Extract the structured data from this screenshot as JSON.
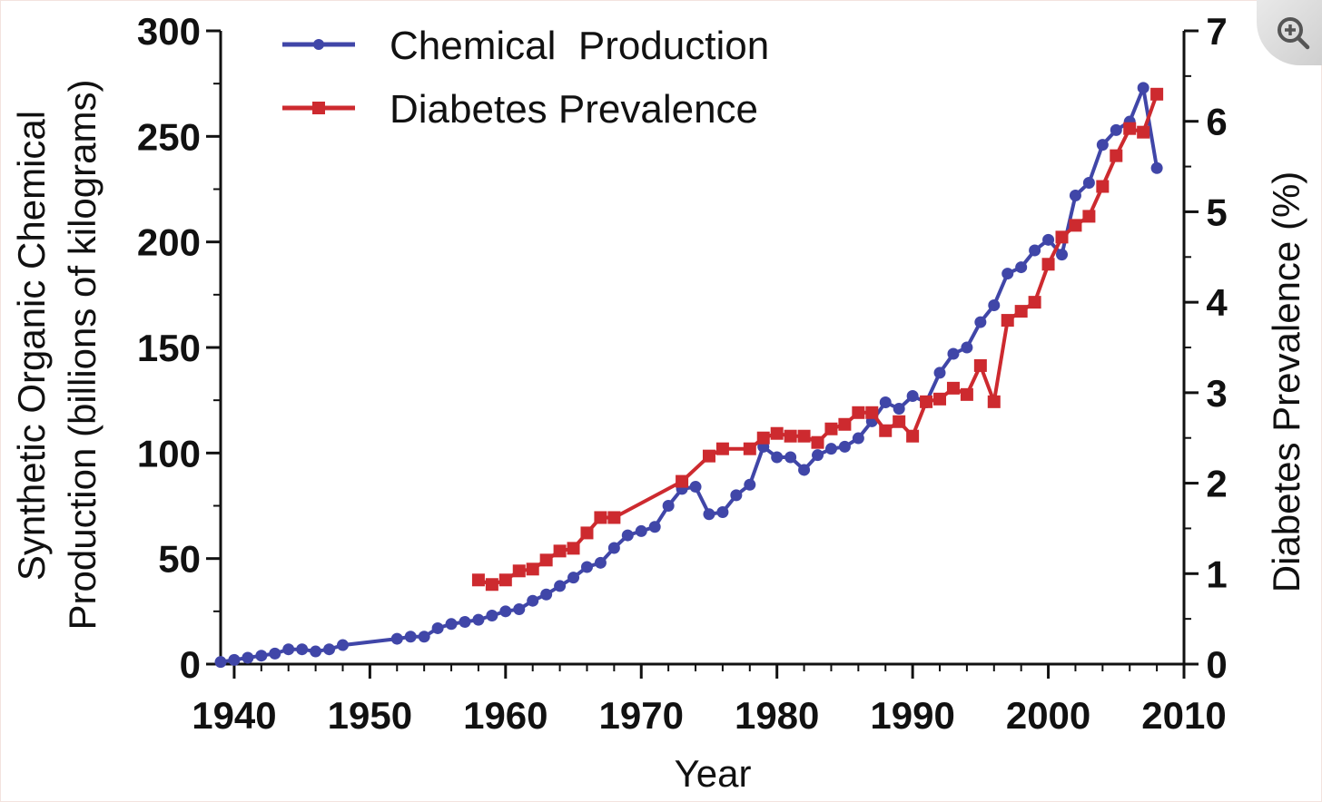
{
  "chart_data": {
    "type": "line",
    "title": "",
    "xlabel": "Year",
    "ylabel_left": "Synthetic Organic Chemical Production (billions of kilograms)",
    "ylabel_left_lines": [
      "Synthetic  Organic  Chemical",
      "Production (billions of kilograms)"
    ],
    "ylabel_right": "Diabetes  Prevalence (%)",
    "xlim": [
      1939,
      2010
    ],
    "ylim_left": [
      0,
      300
    ],
    "ylim_right": [
      0,
      7
    ],
    "x_ticks": [
      1940,
      1950,
      1960,
      1970,
      1980,
      1990,
      2000,
      2010
    ],
    "y_ticks_left": [
      0,
      50,
      100,
      150,
      200,
      250,
      300
    ],
    "y_ticks_right": [
      0,
      1,
      2,
      3,
      4,
      5,
      6,
      7
    ],
    "grid": false,
    "legend_position": "top-left",
    "series": [
      {
        "name": "Chemical  Production",
        "axis": "left",
        "color": "#4046a8",
        "marker": "circle",
        "x": [
          1939,
          1940,
          1941,
          1942,
          1943,
          1944,
          1945,
          1946,
          1947,
          1948,
          1952,
          1953,
          1954,
          1955,
          1956,
          1957,
          1958,
          1959,
          1960,
          1961,
          1962,
          1963,
          1964,
          1965,
          1966,
          1967,
          1968,
          1969,
          1970,
          1971,
          1972,
          1973,
          1974,
          1975,
          1976,
          1977,
          1978,
          1979,
          1980,
          1981,
          1982,
          1983,
          1984,
          1985,
          1986,
          1987,
          1988,
          1989,
          1990,
          1991,
          1992,
          1993,
          1994,
          1995,
          1996,
          1997,
          1998,
          1999,
          2000,
          2001,
          2002,
          2003,
          2004,
          2005,
          2006,
          2007,
          2008
        ],
        "values": [
          1,
          2,
          3,
          4,
          5,
          7,
          7,
          6,
          7,
          9,
          12,
          13,
          13,
          17,
          19,
          20,
          21,
          23,
          25,
          26,
          30,
          33,
          37,
          41,
          46,
          48,
          55,
          61,
          63,
          65,
          75,
          83,
          84,
          71,
          72,
          80,
          85,
          103,
          98,
          98,
          92,
          99,
          102,
          103,
          107,
          115,
          124,
          121,
          127,
          124,
          138,
          147,
          150,
          162,
          170,
          185,
          188,
          196,
          201,
          194,
          222,
          228,
          246,
          253,
          257,
          273,
          235
        ]
      },
      {
        "name": "Diabetes Prevalence",
        "axis": "right",
        "color": "#cd2a2f",
        "marker": "square",
        "x": [
          1958,
          1959,
          1960,
          1961,
          1962,
          1963,
          1964,
          1965,
          1966,
          1967,
          1968,
          1973,
          1975,
          1976,
          1978,
          1979,
          1980,
          1981,
          1982,
          1983,
          1984,
          1985,
          1986,
          1987,
          1988,
          1989,
          1990,
          1991,
          1992,
          1993,
          1994,
          1995,
          1996,
          1997,
          1998,
          1999,
          2000,
          2001,
          2002,
          2003,
          2004,
          2005,
          2006,
          2007,
          2008
        ],
        "values": [
          0.93,
          0.88,
          0.93,
          1.03,
          1.05,
          1.15,
          1.25,
          1.28,
          1.45,
          1.62,
          1.62,
          2.02,
          2.3,
          2.38,
          2.38,
          2.5,
          2.55,
          2.52,
          2.52,
          2.45,
          2.6,
          2.65,
          2.78,
          2.78,
          2.58,
          2.68,
          2.52,
          2.9,
          2.93,
          3.05,
          2.98,
          3.3,
          2.9,
          3.8,
          3.9,
          4.0,
          4.42,
          4.72,
          4.85,
          4.95,
          5.28,
          5.62,
          5.92,
          5.88,
          6.3
        ]
      }
    ]
  }
}
